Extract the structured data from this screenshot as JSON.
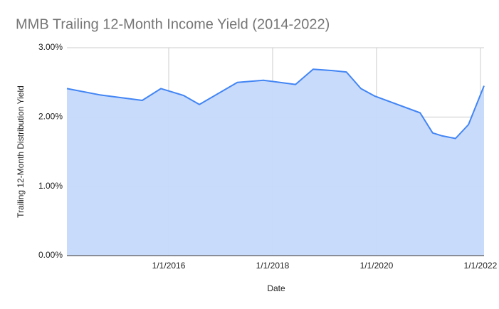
{
  "chart_data": {
    "type": "area",
    "title": "MMB Trailing 12-Month Income Yield (2014-2022)",
    "x_label": "Date",
    "y_label": "Trailing 12-Month Distribution Yield",
    "x": [
      2014.04,
      2014.67,
      2015.49,
      2015.85,
      2016.29,
      2016.59,
      2017.32,
      2017.82,
      2018.44,
      2018.78,
      2019.15,
      2019.42,
      2019.7,
      2019.97,
      2020.84,
      2021.08,
      2021.25,
      2021.52,
      2021.77,
      2022.07
    ],
    "series": [
      {
        "name": "Trailing 12-Month Distribution Yield",
        "color": "#4285f4",
        "fill": "#c6d9fb",
        "values": [
          2.41,
          2.32,
          2.24,
          2.41,
          2.31,
          2.18,
          2.5,
          2.53,
          2.47,
          2.69,
          2.67,
          2.65,
          2.41,
          2.3,
          2.06,
          1.77,
          1.73,
          1.69,
          1.89,
          2.45
        ]
      }
    ],
    "xlim": [
      2014.04,
      2022.07
    ],
    "xticks": [
      {
        "value": 2016,
        "label": "1/1/2016"
      },
      {
        "value": 2018,
        "label": "1/1/2018"
      },
      {
        "value": 2020,
        "label": "1/1/2020"
      },
      {
        "value": 2022,
        "label": "1/1/2022"
      }
    ],
    "ylim": [
      0,
      3
    ],
    "yticks": [
      {
        "value": 0,
        "label": "0.00%"
      },
      {
        "value": 1,
        "label": "1.00%"
      },
      {
        "value": 2,
        "label": "2.00%"
      },
      {
        "value": 3,
        "label": "3.00%"
      }
    ],
    "grid": true
  }
}
